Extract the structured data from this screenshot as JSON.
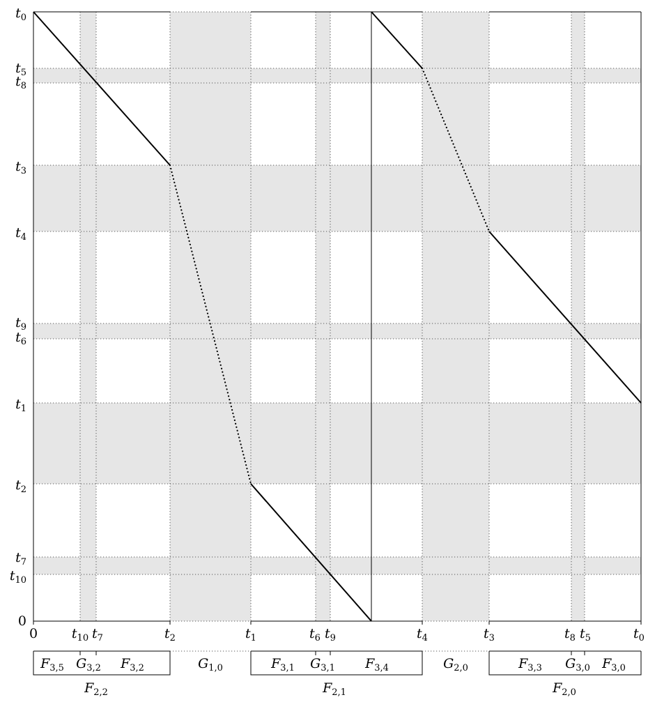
{
  "y_axis_labels": [
    {
      "main": "t",
      "sub": "0"
    },
    {
      "main": "t",
      "sub": "5"
    },
    {
      "main": "t",
      "sub": "8"
    },
    {
      "main": "t",
      "sub": "3"
    },
    {
      "main": "t",
      "sub": "4"
    },
    {
      "main": "t",
      "sub": "9"
    },
    {
      "main": "t",
      "sub": "6"
    },
    {
      "main": "t",
      "sub": "1"
    },
    {
      "main": "t",
      "sub": "2"
    },
    {
      "main": "t",
      "sub": "7"
    },
    {
      "main": "t",
      "sub": "10"
    },
    {
      "main": "0",
      "sub": ""
    }
  ],
  "x_axis_labels": [
    {
      "main": "0",
      "sub": ""
    },
    {
      "main": "t",
      "sub": "10"
    },
    {
      "main": "t",
      "sub": "7"
    },
    {
      "main": "t",
      "sub": "2"
    },
    {
      "main": "t",
      "sub": "1"
    },
    {
      "main": "t",
      "sub": "6"
    },
    {
      "main": "t",
      "sub": "9"
    },
    {
      "main": "t",
      "sub": "4"
    },
    {
      "main": "t",
      "sub": "3"
    },
    {
      "main": "t",
      "sub": "8"
    },
    {
      "main": "t",
      "sub": "5"
    },
    {
      "main": "t",
      "sub": "0"
    }
  ],
  "level1_segments": [
    {
      "main": "F",
      "sub": "3,5"
    },
    {
      "main": "G",
      "sub": "3,2"
    },
    {
      "main": "F",
      "sub": "3,2"
    },
    {
      "main": "G",
      "sub": "1,0"
    },
    {
      "main": "F",
      "sub": "3,1"
    },
    {
      "main": "G",
      "sub": "3,1"
    },
    {
      "main": "F",
      "sub": "3,4"
    },
    {
      "main": "G",
      "sub": "2,0"
    },
    {
      "main": "F",
      "sub": "3,3"
    },
    {
      "main": "G",
      "sub": "3,0"
    },
    {
      "main": "F",
      "sub": "3,0"
    }
  ],
  "level2_segments": [
    {
      "main": "F",
      "sub": "2,2"
    },
    {
      "main": "F",
      "sub": "2,1"
    },
    {
      "main": "F",
      "sub": "2,0"
    }
  ]
}
